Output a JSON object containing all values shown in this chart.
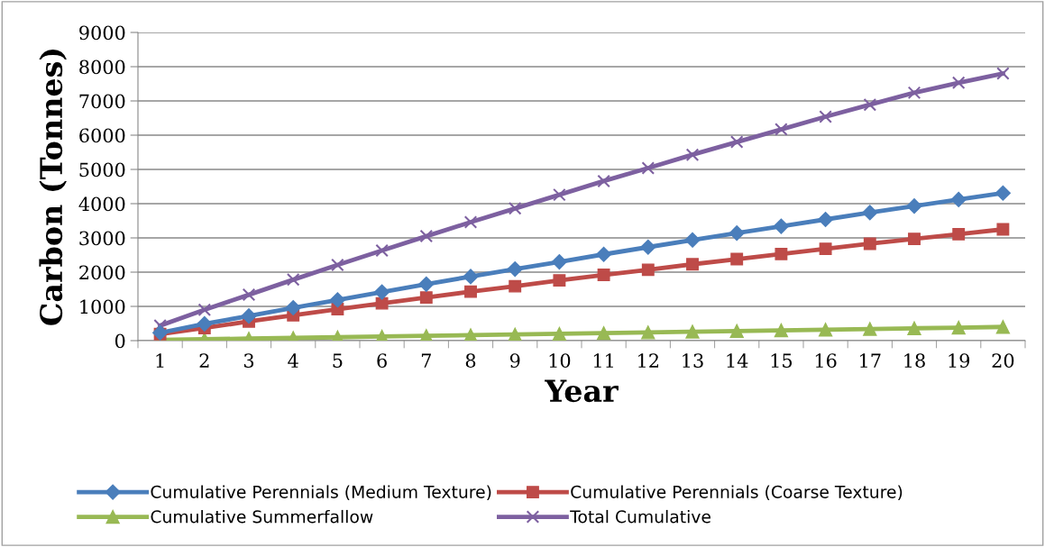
{
  "chart_data": {
    "type": "line",
    "xlabel": "Year",
    "ylabel": "Carbon (Tonnes)",
    "categories": [
      "1",
      "2",
      "3",
      "4",
      "5",
      "6",
      "7",
      "8",
      "9",
      "10",
      "11",
      "12",
      "13",
      "14",
      "15",
      "16",
      "17",
      "18",
      "19",
      "20"
    ],
    "series": [
      {
        "name": "Cumulative Perennials (Medium Texture)",
        "color": "#4a7ebb",
        "marker": "diamond",
        "values": [
          230,
          490,
          720,
          960,
          1190,
          1420,
          1650,
          1870,
          2090,
          2300,
          2520,
          2730,
          2940,
          3140,
          3340,
          3540,
          3740,
          3930,
          4120,
          4310
        ]
      },
      {
        "name": "Cumulative Perennials (Coarse Texture)",
        "color": "#be4b48",
        "marker": "square",
        "values": [
          190,
          370,
          560,
          740,
          920,
          1090,
          1260,
          1430,
          1590,
          1760,
          1920,
          2070,
          2230,
          2380,
          2530,
          2680,
          2830,
          2970,
          3110,
          3250
        ]
      },
      {
        "name": "Cumulative Summerfallow",
        "color": "#98b954",
        "marker": "triangle",
        "values": [
          20,
          40,
          60,
          80,
          100,
          120,
          140,
          160,
          180,
          200,
          220,
          240,
          260,
          280,
          300,
          320,
          340,
          360,
          380,
          400
        ]
      },
      {
        "name": "Total Cumulative",
        "color": "#7d60a0",
        "marker": "cross",
        "values": [
          440,
          900,
          1340,
          1780,
          2210,
          2630,
          3050,
          3460,
          3860,
          4260,
          4660,
          5040,
          5430,
          5800,
          6170,
          6540,
          6890,
          7240,
          7530,
          7800
        ]
      }
    ],
    "ylim": [
      0,
      9000
    ],
    "yticks": [
      0,
      1000,
      2000,
      3000,
      4000,
      5000,
      6000,
      7000,
      8000,
      9000
    ],
    "grid": "y",
    "legend": "bottom",
    "line_style": "solid"
  }
}
